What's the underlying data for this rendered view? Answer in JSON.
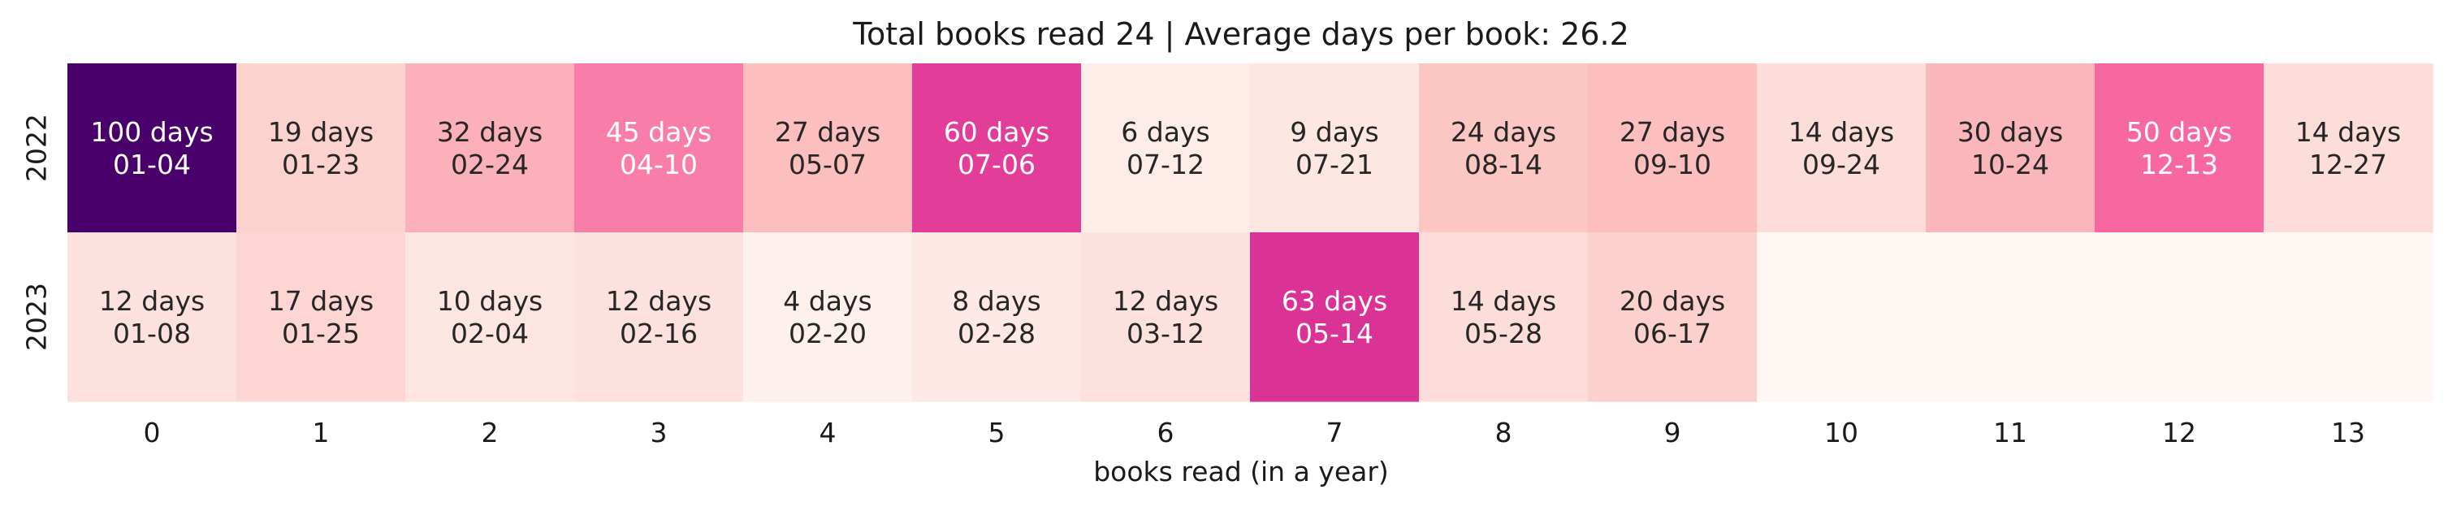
{
  "chart_data": {
    "type": "heatmap",
    "title": "Total books read 24 | Average days per book: 26.2",
    "xlabel": "books read (in a year)",
    "ylabel": "",
    "x_ticks": [
      "0",
      "1",
      "2",
      "3",
      "4",
      "5",
      "6",
      "7",
      "8",
      "9",
      "10",
      "11",
      "12",
      "13"
    ],
    "y_ticks": [
      "2022",
      "2023"
    ],
    "value_range": [
      0,
      100
    ],
    "colormap": "RdPu",
    "grid": false,
    "legend": "none",
    "rows": [
      {
        "year": "2022",
        "cells": [
          {
            "days": 100,
            "label": "100 days",
            "date": "01-04"
          },
          {
            "days": 19,
            "label": "19 days",
            "date": "01-23"
          },
          {
            "days": 32,
            "label": "32 days",
            "date": "02-24"
          },
          {
            "days": 45,
            "label": "45 days",
            "date": "04-10"
          },
          {
            "days": 27,
            "label": "27 days",
            "date": "05-07"
          },
          {
            "days": 60,
            "label": "60 days",
            "date": "07-06"
          },
          {
            "days": 6,
            "label": "6 days",
            "date": "07-12"
          },
          {
            "days": 9,
            "label": "9 days",
            "date": "07-21"
          },
          {
            "days": 24,
            "label": "24 days",
            "date": "08-14"
          },
          {
            "days": 27,
            "label": "27 days",
            "date": "09-10"
          },
          {
            "days": 14,
            "label": "14 days",
            "date": "09-24"
          },
          {
            "days": 30,
            "label": "30 days",
            "date": "10-24"
          },
          {
            "days": 50,
            "label": "50 days",
            "date": "12-13"
          },
          {
            "days": 14,
            "label": "14 days",
            "date": "12-27"
          }
        ]
      },
      {
        "year": "2023",
        "cells": [
          {
            "days": 12,
            "label": "12 days",
            "date": "01-08"
          },
          {
            "days": 17,
            "label": "17 days",
            "date": "01-25"
          },
          {
            "days": 10,
            "label": "10 days",
            "date": "02-04"
          },
          {
            "days": 12,
            "label": "12 days",
            "date": "02-16"
          },
          {
            "days": 4,
            "label": "4 days",
            "date": "02-20"
          },
          {
            "days": 8,
            "label": "8 days",
            "date": "02-28"
          },
          {
            "days": 12,
            "label": "12 days",
            "date": "03-12"
          },
          {
            "days": 63,
            "label": "63 days",
            "date": "05-14"
          },
          {
            "days": 14,
            "label": "14 days",
            "date": "05-28"
          },
          {
            "days": 20,
            "label": "20 days",
            "date": "06-17"
          },
          {
            "days": 0,
            "label": "",
            "date": ""
          },
          {
            "days": 0,
            "label": "",
            "date": ""
          },
          {
            "days": 0,
            "label": "",
            "date": ""
          },
          {
            "days": 0,
            "label": "",
            "date": ""
          }
        ]
      }
    ]
  }
}
